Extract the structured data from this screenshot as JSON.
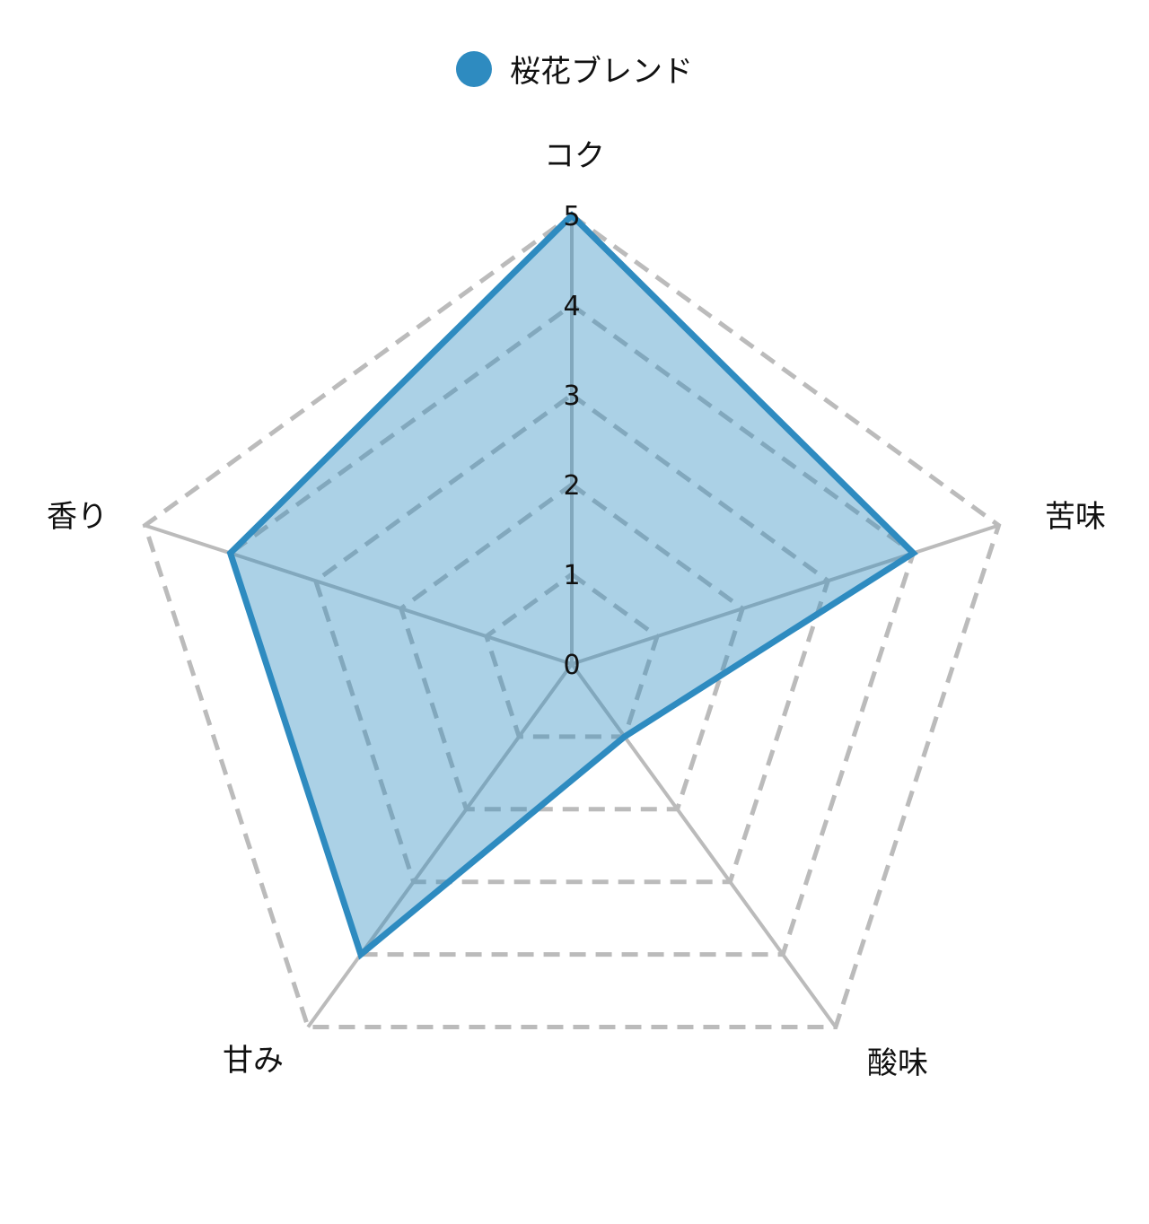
{
  "chart_data": {
    "type": "radar",
    "axes": [
      "コク",
      "苦味",
      "酸味",
      "甘み",
      "香り"
    ],
    "series": [
      {
        "name": "桜花ブレンド",
        "values": [
          5,
          4,
          1,
          4,
          4
        ],
        "color": "#2e8bc0"
      }
    ],
    "rlim": [
      0,
      5
    ],
    "ticks": [
      "0",
      "1",
      "2",
      "3",
      "4",
      "5"
    ],
    "grid": true,
    "legend_position": "top"
  }
}
